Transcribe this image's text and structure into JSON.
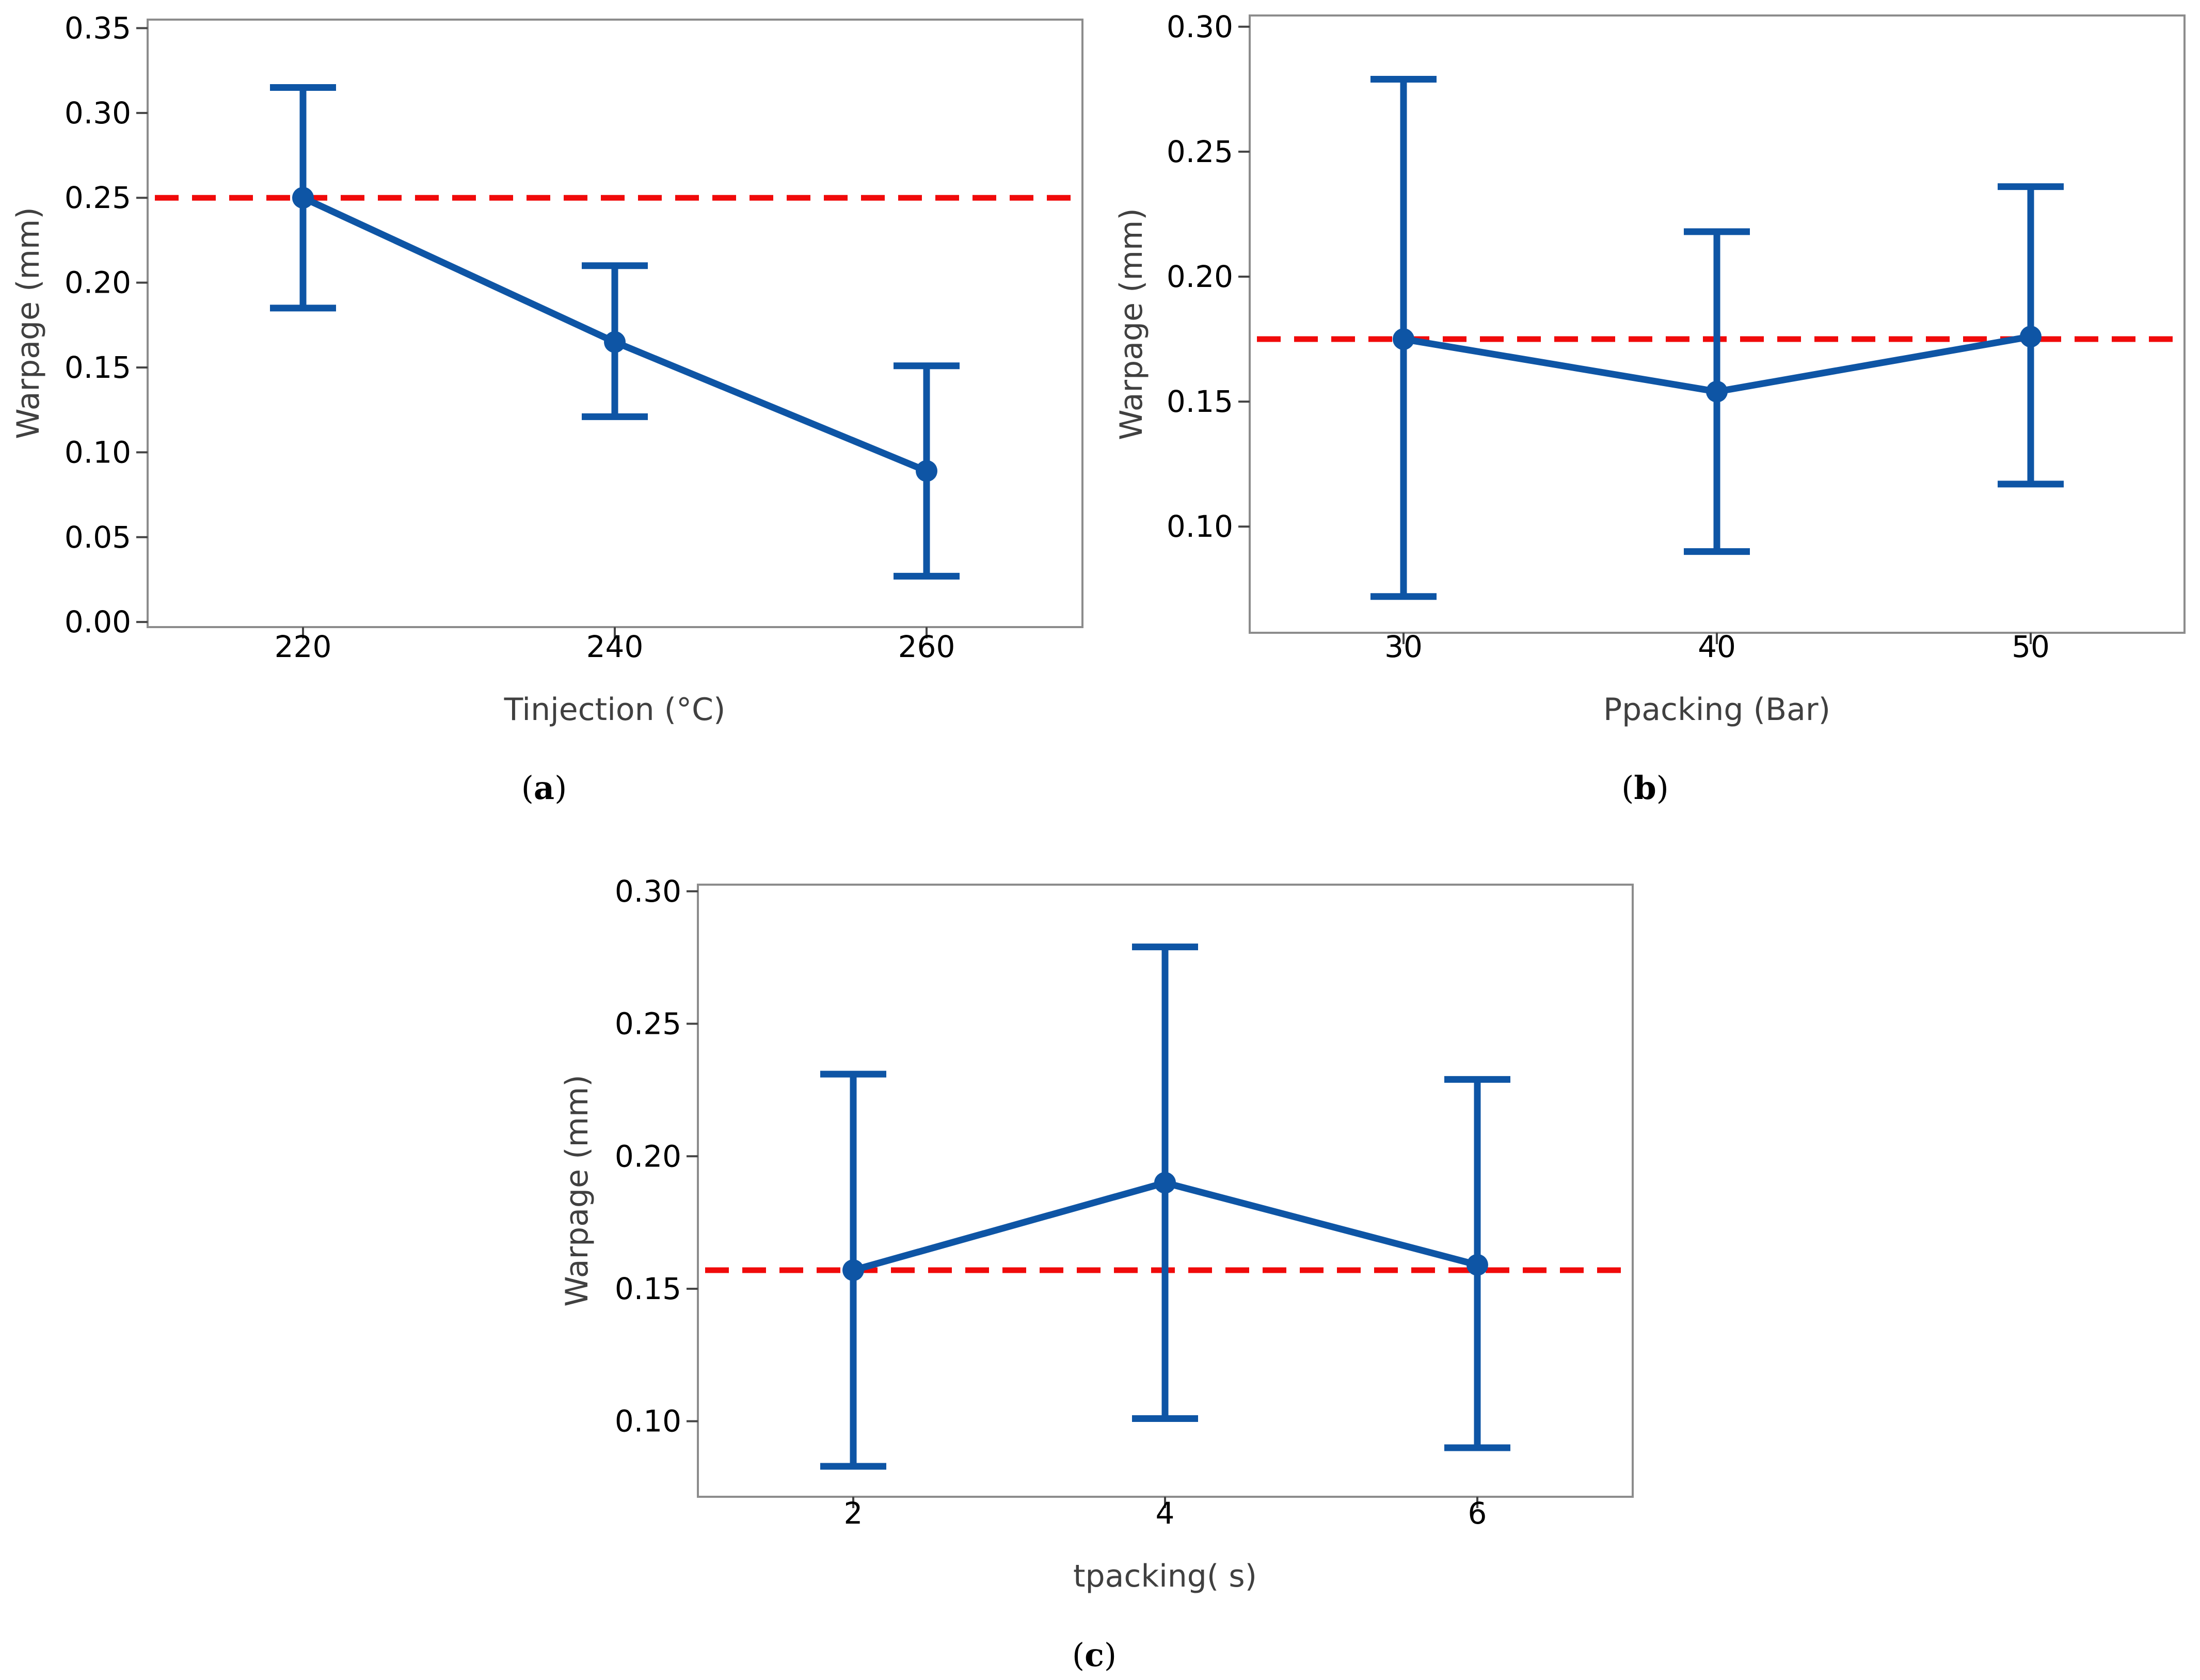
{
  "chart_data": [
    {
      "id": "a",
      "type": "line",
      "panel_label": "a",
      "xlabel": "Tinjection (°C)",
      "ylabel": "Warpage (mm)",
      "categories": [
        "220",
        "240",
        "260"
      ],
      "series": [
        {
          "name": "Warpage",
          "values": [
            0.25,
            0.165,
            0.089
          ],
          "error_low": [
            0.185,
            0.121,
            0.027
          ],
          "error_high": [
            0.315,
            0.21,
            0.151
          ]
        }
      ],
      "reference_line": 0.25,
      "yticks": [
        "0.00",
        "0.05",
        "0.10",
        "0.15",
        "0.20",
        "0.25",
        "0.30",
        "0.35"
      ],
      "ylim": [
        -0.003,
        0.355
      ],
      "color_series": "#0e55a5",
      "color_reference": "#f00a0a"
    },
    {
      "id": "b",
      "type": "line",
      "panel_label": "b",
      "xlabel": "Ppacking (Bar)",
      "ylabel": "Warpage (mm)",
      "categories": [
        "30",
        "40",
        "50"
      ],
      "series": [
        {
          "name": "Warpage",
          "values": [
            0.175,
            0.154,
            0.176
          ],
          "error_low": [
            0.072,
            0.09,
            0.117
          ],
          "error_high": [
            0.279,
            0.218,
            0.236
          ]
        }
      ],
      "reference_line": 0.175,
      "yticks": [
        "0.10",
        "0.15",
        "0.20",
        "0.25",
        "0.30"
      ],
      "ylim": [
        0.0575,
        0.3045
      ],
      "color_series": "#0e55a5",
      "color_reference": "#f00a0a"
    },
    {
      "id": "c",
      "type": "line",
      "panel_label": "c",
      "xlabel": "tpacking( s)",
      "ylabel": "Warpage (mm)",
      "categories": [
        "2",
        "4",
        "6"
      ],
      "series": [
        {
          "name": "Warpage",
          "values": [
            0.157,
            0.19,
            0.159
          ],
          "error_low": [
            0.083,
            0.101,
            0.09
          ],
          "error_high": [
            0.231,
            0.279,
            0.229
          ]
        }
      ],
      "reference_line": 0.157,
      "yticks": [
        "0.10",
        "0.15",
        "0.20",
        "0.25",
        "0.30"
      ],
      "ylim": [
        0.0715,
        0.3025
      ],
      "color_series": "#0e55a5",
      "color_reference": "#f00a0a"
    }
  ]
}
